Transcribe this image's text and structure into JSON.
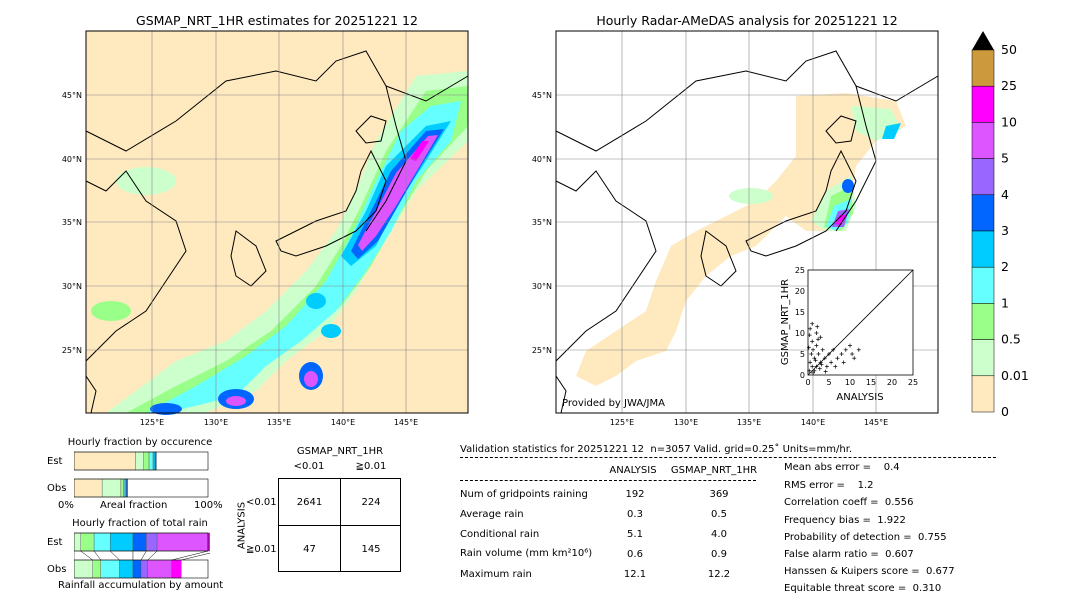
{
  "left_map": {
    "title": "GSMAP_NRT_1HR estimates for 20251221 12",
    "lon_ticks": [
      "125°E",
      "130°E",
      "135°E",
      "140°E",
      "145°E"
    ],
    "lat_ticks": [
      "45°N",
      "40°N",
      "35°N",
      "30°N",
      "25°N"
    ]
  },
  "right_map": {
    "title": "Hourly Radar-AMeDAS analysis for 20251221 12",
    "lon_ticks": [
      "125°E",
      "130°E",
      "135°E",
      "140°E",
      "145°E"
    ],
    "lat_ticks": [
      "45°N",
      "40°N",
      "35°N",
      "30°N",
      "25°N"
    ],
    "credit": "Provided by JWA/JMA"
  },
  "scatter_inset": {
    "xlabel": "ANALYSIS",
    "ylabel": "GSMAP_NRT_1HR",
    "ticks": [
      "0",
      "5",
      "10",
      "15",
      "20",
      "25"
    ],
    "range": [
      0,
      25
    ]
  },
  "colorbar": {
    "levels": [
      "50",
      "25",
      "10",
      "5",
      "4",
      "3",
      "2",
      "1",
      "0.5",
      "0.01",
      "0"
    ],
    "colors": [
      "#cc9a3c",
      "#ff00ff",
      "#dd55ff",
      "#9966ff",
      "#0066ff",
      "#00ccff",
      "#66ffff",
      "#99ff88",
      "#ccffcc",
      "#ffe9bf"
    ],
    "over_color": "#000000"
  },
  "occurrence": {
    "title": "Hourly fraction by occurence",
    "rows": [
      "Est",
      "Obs"
    ],
    "axis_left": "0%",
    "axis_mid": "Areal fraction",
    "axis_right": "100%"
  },
  "total_rain": {
    "title": "Hourly fraction of total rain",
    "rows": [
      "Est",
      "Obs"
    ],
    "footer": "Rainfall accumulation by amount"
  },
  "contingency": {
    "col_header": "GSMAP_NRT_1HR",
    "col_labels": [
      "<0.01",
      "≧0.01"
    ],
    "row_header": "ANALYSIS",
    "row_labels": [
      "<0.01",
      "≧0.01"
    ],
    "cells": [
      [
        "2641",
        "224"
      ],
      [
        "47",
        "145"
      ]
    ]
  },
  "validation": {
    "header": "Validation statistics for 20251221 12  n=3057 Valid. grid=0.25˚ Units=mm/hr.",
    "col_analysis": "ANALYSIS",
    "col_gsmap": "GSMAP_NRT_1HR",
    "rows": [
      {
        "label": "Num of gridpoints raining",
        "analysis": "192",
        "gsmap": "369"
      },
      {
        "label": "Average rain",
        "analysis": "0.3",
        "gsmap": "0.5"
      },
      {
        "label": "Conditional rain",
        "analysis": "5.1",
        "gsmap": "4.0"
      },
      {
        "label": "Rain volume (mm km²10⁶)",
        "analysis": "0.6",
        "gsmap": "0.9"
      },
      {
        "label": "Maximum rain",
        "analysis": "12.1",
        "gsmap": "12.2"
      }
    ],
    "scores": [
      "Mean abs error =    0.4",
      "RMS error =    1.2",
      "Correlation coeff =  0.556",
      "Frequency bias =  1.922",
      "Probability of detection =  0.755",
      "False alarm ratio =  0.607",
      "Hanssen & Kuipers score =  0.677",
      "Equitable threat score =  0.310"
    ]
  },
  "chart_data": [
    {
      "type": "scatter",
      "xlabel": "ANALYSIS",
      "ylabel": "GSMAP_NRT_1HR",
      "xlim": [
        0,
        25
      ],
      "ylim": [
        0,
        25
      ],
      "points": [
        [
          0.3,
          1
        ],
        [
          0.5,
          3
        ],
        [
          0.8,
          5
        ],
        [
          1,
          2
        ],
        [
          1,
          8
        ],
        [
          1.2,
          6
        ],
        [
          1.5,
          1
        ],
        [
          1.5,
          4
        ],
        [
          2,
          2
        ],
        [
          2,
          7
        ],
        [
          2,
          10
        ],
        [
          2.5,
          5
        ],
        [
          3,
          3
        ],
        [
          3,
          9
        ],
        [
          0.5,
          11
        ],
        [
          1,
          12.2
        ],
        [
          2.2,
          11.5
        ],
        [
          3.5,
          6
        ],
        [
          4,
          4
        ],
        [
          4.5,
          2
        ],
        [
          5,
          5
        ],
        [
          5.5,
          3
        ],
        [
          6,
          6
        ],
        [
          6.5,
          2
        ],
        [
          7,
          4
        ],
        [
          8,
          5
        ],
        [
          8.5,
          3
        ],
        [
          9,
          6
        ],
        [
          10,
          7
        ],
        [
          10.5,
          5
        ],
        [
          11,
          4
        ],
        [
          12.1,
          6
        ],
        [
          1.2,
          0.5
        ],
        [
          2.8,
          1.5
        ],
        [
          3.2,
          2.5
        ],
        [
          0.2,
          6.5
        ],
        [
          0.4,
          9.5
        ],
        [
          1.8,
          3.5
        ],
        [
          2.4,
          8.5
        ],
        [
          4.2,
          0.8
        ]
      ]
    },
    {
      "type": "bar",
      "title": "Hourly fraction by occurence",
      "categories": [
        "Est",
        "Obs"
      ],
      "series": [
        {
          "values": [
            0.46,
            0.21
          ]
        },
        {
          "values": [
            0.06,
            0.14
          ]
        },
        {
          "values": [
            0.04,
            0.02
          ]
        },
        {
          "values": [
            0.03,
            0.01
          ]
        },
        {
          "values": [
            0.015,
            0.01
          ]
        },
        {
          "values": [
            0.01,
            0.01
          ]
        }
      ]
    },
    {
      "type": "bar",
      "title": "Hourly fraction of total rain",
      "categories": [
        "Est",
        "Obs"
      ],
      "series": [
        {
          "values": [
            0.05,
            0.14
          ]
        },
        {
          "values": [
            0.1,
            0.06
          ]
        },
        {
          "values": [
            0.12,
            0.14
          ]
        },
        {
          "values": [
            0.17,
            0.1
          ]
        },
        {
          "values": [
            0.1,
            0.06
          ]
        },
        {
          "values": [
            0.08,
            0.05
          ]
        },
        {
          "values": [
            0.38,
            0.18
          ]
        },
        {
          "values": [
            0.08,
            0.07
          ]
        }
      ]
    },
    {
      "type": "table",
      "title": "GSMAP_NRT_1HR",
      "rows": [
        "<0.01",
        "≧0.01"
      ],
      "columns": [
        "<0.01",
        "≧0.01"
      ],
      "values": [
        [
          2641,
          224
        ],
        [
          47,
          145
        ]
      ]
    }
  ]
}
